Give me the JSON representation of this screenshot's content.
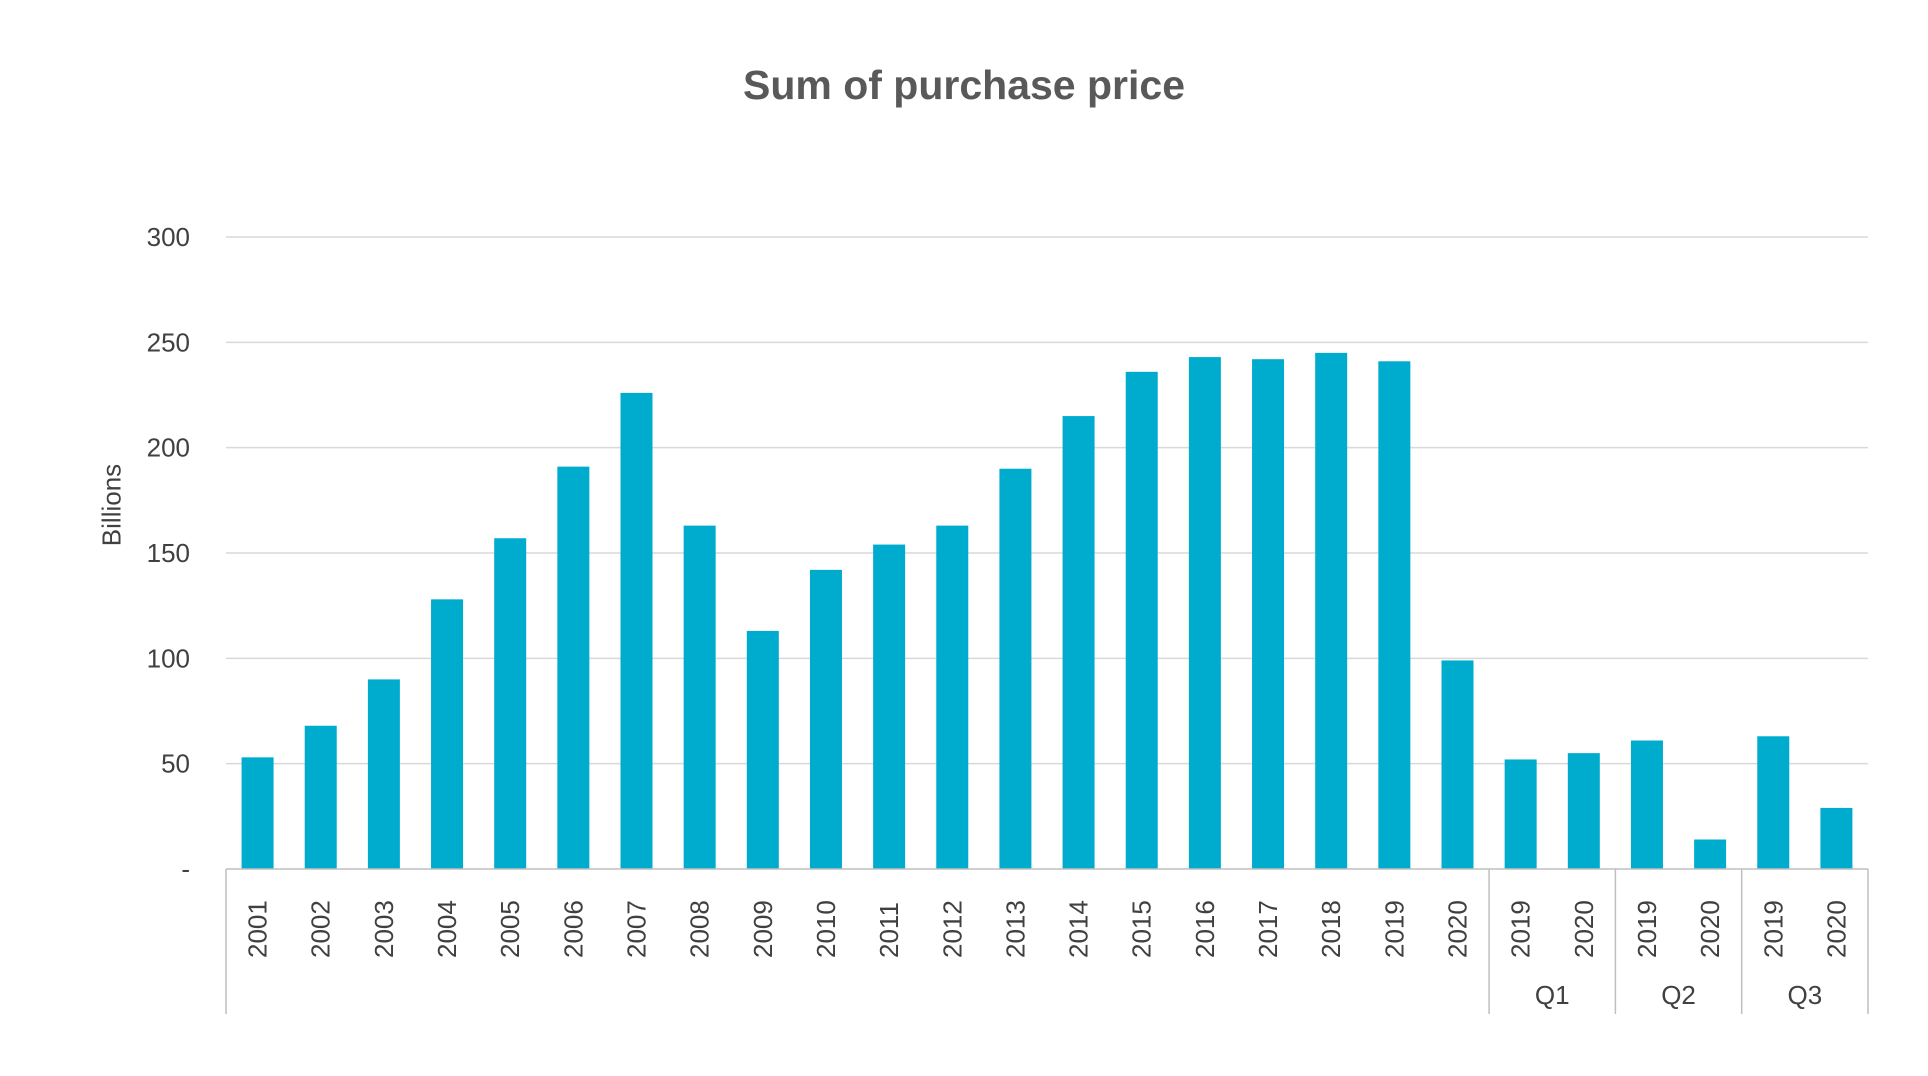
{
  "chart_data": {
    "type": "bar",
    "title": "Sum of purchase price",
    "xlabel": "",
    "ylabel": "Billions",
    "ylim": [
      0,
      300
    ],
    "yticks": [
      "-",
      "50",
      "100",
      "150",
      "200",
      "250",
      "300"
    ],
    "grid": true,
    "legend": "none",
    "bar_color": "#00ACCE",
    "categories": [
      "2001",
      "2002",
      "2003",
      "2004",
      "2005",
      "2006",
      "2007",
      "2008",
      "2009",
      "2010",
      "2011",
      "2012",
      "2013",
      "2014",
      "2015",
      "2016",
      "2017",
      "2018",
      "2019",
      "2020",
      "2019",
      "2020",
      "2019",
      "2020",
      "2019",
      "2020"
    ],
    "groups": [
      {
        "label": "",
        "count": 20
      },
      {
        "label": "Q1",
        "count": 2
      },
      {
        "label": "Q2",
        "count": 2
      },
      {
        "label": "Q3",
        "count": 2
      }
    ],
    "values": [
      53,
      68,
      90,
      128,
      157,
      191,
      226,
      163,
      113,
      142,
      154,
      163,
      190,
      215,
      236,
      243,
      242,
      245,
      241,
      99,
      52,
      55,
      61,
      14,
      63,
      29
    ]
  }
}
